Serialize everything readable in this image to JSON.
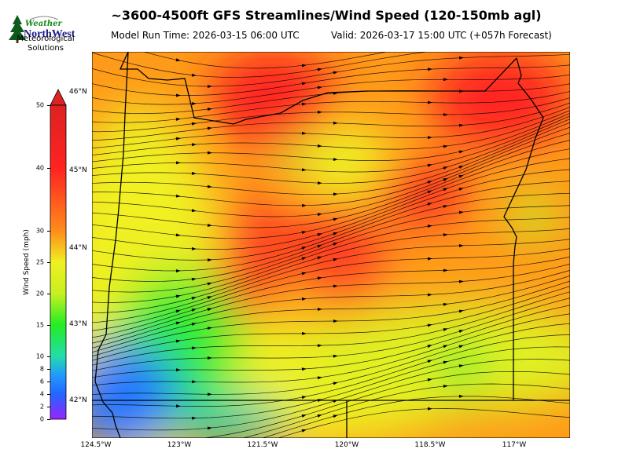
{
  "header": {
    "title": "~3600-4500ft GFS Streamlines/Wind Speed (120-150mb agl)",
    "run_time": "Model Run Time: 2026-03-15 06:00 UTC",
    "valid_time": "Valid: 2026-03-17 15:00 UTC  (+057h Forecast)"
  },
  "logo": {
    "line1": "Weather",
    "line2": "NorthWest",
    "org": "Meteorological Solutions",
    "icon": "evergreen-tree-icon"
  },
  "colorbar": {
    "label": "Wind Speed (mph)",
    "ticks": [
      "50",
      "40",
      "30",
      "25",
      "20",
      "15",
      "10",
      "8",
      "6",
      "4",
      "2",
      "0"
    ],
    "colors": [
      "#dd2222",
      "#ff2222",
      "#ff8c1a",
      "#f0f020",
      "#c8f020",
      "#22ee22",
      "#22ddaa",
      "#2299ff",
      "#2266ff",
      "#9922ff"
    ]
  },
  "map": {
    "lat_labels": [
      "46°N",
      "45°N",
      "44°N",
      "43°N",
      "42°N"
    ],
    "lon_labels": [
      "124.5°W",
      "123°W",
      "121.5°W",
      "120°W",
      "118.5°W",
      "117°W"
    ]
  }
}
